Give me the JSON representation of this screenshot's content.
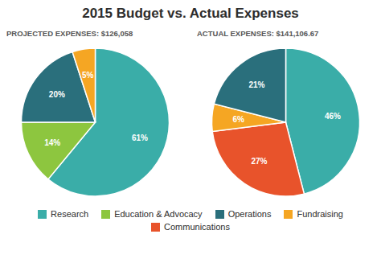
{
  "chart_data": [
    {
      "type": "pie",
      "title": "2015 Budget vs. Actual Expenses",
      "subtitle": "PROJECTED EXPENSES: $126,058",
      "categories": [
        "Research",
        "Education & Advocacy",
        "Operations",
        "Fundraising"
      ],
      "values": [
        61,
        14,
        20,
        5
      ],
      "value_labels": [
        "61%",
        "14%",
        "20%",
        "5%"
      ],
      "colors": [
        "#3aada8",
        "#8dc63f",
        "#2a6f7c",
        "#f5a623"
      ],
      "data_labels": true,
      "legend": "bottom"
    },
    {
      "type": "pie",
      "subtitle": "ACTUAL EXPENSES: $141,106.67",
      "categories": [
        "Research",
        "Communications",
        "Fundraising",
        "Operations"
      ],
      "values": [
        46,
        27,
        6,
        21
      ],
      "value_labels": [
        "46%",
        "27%",
        "6%",
        "21%"
      ],
      "colors": [
        "#3aada8",
        "#e8532b",
        "#f5a623",
        "#2a6f7c"
      ],
      "data_labels": true,
      "legend": "bottom"
    }
  ]
}
